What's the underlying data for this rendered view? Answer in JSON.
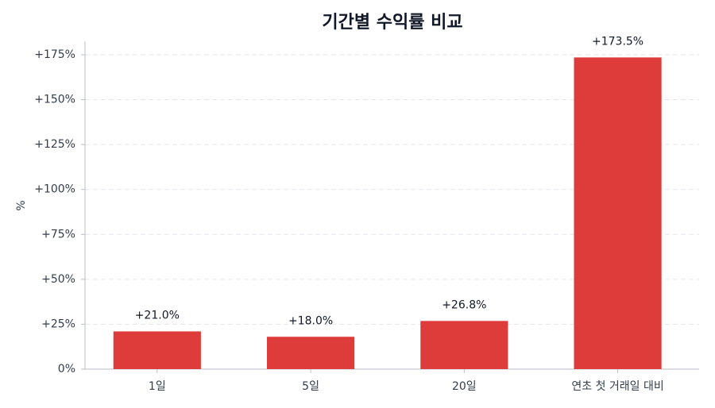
{
  "chart_data": {
    "type": "bar",
    "title": "기간별 수익률 비교",
    "ylabel": "%",
    "categories": [
      "1일",
      "5일",
      "20일",
      "연초 첫 거래일 대비"
    ],
    "values": [
      21.0,
      18.0,
      26.8,
      173.5
    ],
    "value_labels": [
      "+21.0%",
      "+18.0%",
      "+26.8%",
      "+173.5%"
    ],
    "color": "#de3b3b",
    "ylim": [
      0,
      182.5
    ],
    "yticks": [
      {
        "value": 0,
        "label": "0%"
      },
      {
        "value": 25,
        "label": "+25%"
      },
      {
        "value": 50,
        "label": "+50%"
      },
      {
        "value": 75,
        "label": "+75%"
      },
      {
        "value": 100,
        "label": "+100%"
      },
      {
        "value": 125,
        "label": "+125%"
      },
      {
        "value": 150,
        "label": "+150%"
      },
      {
        "value": 175,
        "label": "+175%"
      }
    ],
    "grid": true
  }
}
